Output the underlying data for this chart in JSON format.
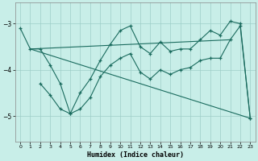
{
  "xlabel": "Humidex (Indice chaleur)",
  "bg_color": "#c8eee8",
  "grid_color": "#9ecdc8",
  "line_color": "#1a6b5e",
  "xlim": [
    -0.5,
    23.5
  ],
  "ylim": [
    -5.55,
    -2.55
  ],
  "yticks": [
    -5,
    -4,
    -3
  ],
  "xticks": [
    0,
    1,
    2,
    3,
    4,
    5,
    6,
    7,
    8,
    9,
    10,
    11,
    12,
    13,
    14,
    15,
    16,
    17,
    18,
    19,
    20,
    21,
    22,
    23
  ],
  "line1_x": [
    0,
    1,
    2,
    3,
    4,
    5,
    6,
    7,
    8,
    9,
    10,
    11,
    12,
    13,
    14,
    15,
    16,
    17,
    18,
    19,
    20,
    21,
    22,
    23
  ],
  "line1_y": [
    -3.1,
    -3.55,
    -3.55,
    -3.9,
    -4.3,
    -4.95,
    -4.5,
    -4.2,
    -3.8,
    -3.45,
    -3.15,
    -3.05,
    -3.5,
    -3.65,
    -3.4,
    -3.6,
    -3.55,
    -3.55,
    -3.35,
    -3.15,
    -3.25,
    -2.95,
    -3.0,
    -5.05
  ],
  "line2_x": [
    2,
    3,
    4,
    5,
    6,
    7,
    8,
    9,
    10,
    11,
    12,
    13,
    14,
    15,
    16,
    17,
    18,
    19,
    20,
    21,
    22,
    23
  ],
  "line2_y": [
    -4.3,
    -4.55,
    -4.85,
    -4.95,
    -4.85,
    -4.6,
    -4.15,
    -3.9,
    -3.75,
    -3.65,
    -4.05,
    -4.2,
    -4.0,
    -4.1,
    -4.0,
    -3.95,
    -3.8,
    -3.75,
    -3.75,
    -3.35,
    -3.05,
    -5.05
  ],
  "line3_x": [
    1,
    23
  ],
  "line3_y": [
    -3.55,
    -5.05
  ],
  "line4_x": [
    1,
    21
  ],
  "line4_y": [
    -3.55,
    -3.35
  ]
}
